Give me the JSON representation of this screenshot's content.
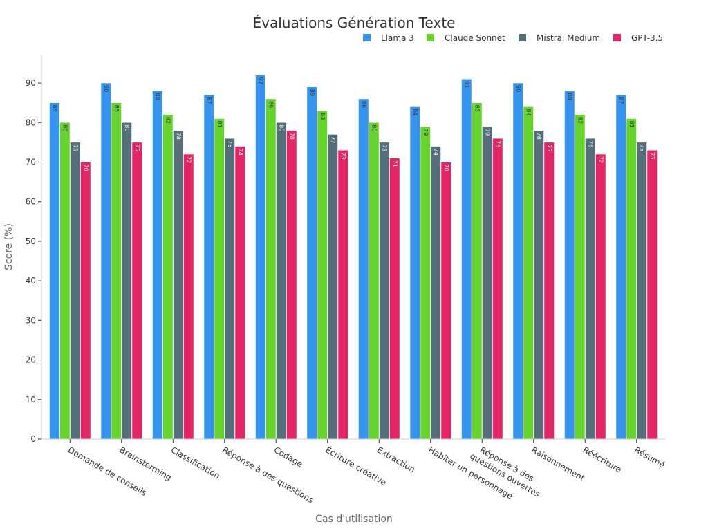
{
  "chart_data": {
    "type": "bar",
    "title": "Évaluations Génération Texte",
    "xlabel": "Cas d'utilisation",
    "ylabel": "Score (%)",
    "ylim": [
      0,
      97
    ],
    "yticks": [
      0,
      10,
      20,
      30,
      40,
      50,
      60,
      70,
      80,
      90
    ],
    "grid": false,
    "legend_position": "top-right",
    "categories": [
      "Demande de conseils",
      "Brainstorming",
      "Classification",
      "Réponse à des questions",
      "Codage",
      "Écriture créative",
      "Extraction",
      "Habiter un personnage",
      "Réponse à des questions ouvertes",
      "Raisonnement",
      "Réécriture",
      "Résumé"
    ],
    "series": [
      {
        "name": "Llama 3",
        "color": "#3594f0",
        "values": [
          85,
          90,
          88,
          87,
          92,
          89,
          86,
          84,
          91,
          90,
          88,
          87
        ]
      },
      {
        "name": "Claude Sonnet",
        "color": "#66d42a",
        "values": [
          80,
          85,
          82,
          81,
          86,
          83,
          80,
          79,
          85,
          84,
          82,
          81
        ]
      },
      {
        "name": "Mistral Medium",
        "color": "#546e7a",
        "values": [
          75,
          80,
          78,
          76,
          80,
          77,
          75,
          74,
          79,
          78,
          76,
          75
        ]
      },
      {
        "name": "GPT-3.5",
        "color": "#e52365",
        "values": [
          70,
          75,
          72,
          74,
          78,
          73,
          71,
          70,
          76,
          75,
          72,
          73
        ]
      }
    ]
  }
}
